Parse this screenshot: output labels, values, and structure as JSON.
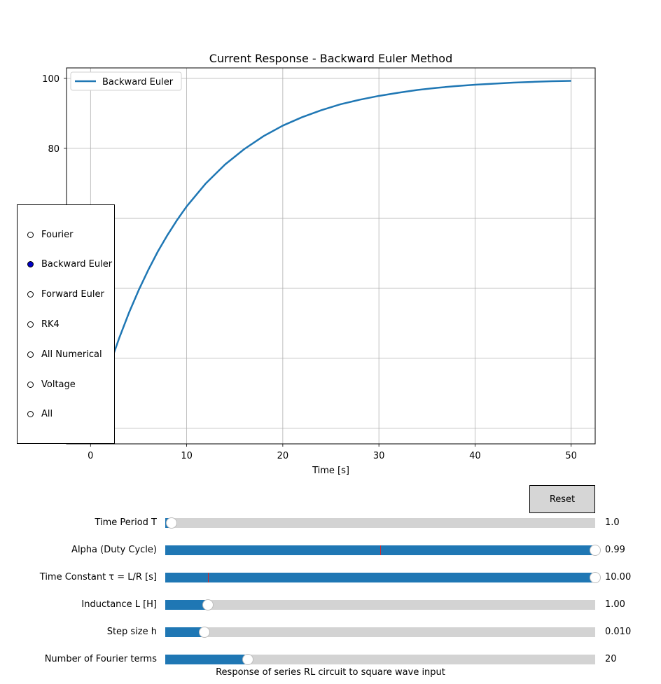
{
  "chart_data": {
    "type": "line",
    "title": "Current Response - Backward Euler Method",
    "xlabel": "Time [s]",
    "ylabel": "",
    "xlim": [
      -2.5,
      52.5
    ],
    "ylim": [
      -4.5,
      103
    ],
    "xticks": [
      0,
      10,
      20,
      30,
      40,
      50
    ],
    "yticks": [
      0,
      20,
      40,
      60,
      80,
      100
    ],
    "ytick_labels_visible": [
      "80",
      "100"
    ],
    "grid": true,
    "legend": "upper left",
    "series": [
      {
        "name": "Backward Euler",
        "color": "#1f77b4",
        "x": [
          0,
          1,
          2,
          3,
          4,
          5,
          6,
          7,
          8,
          9,
          10,
          12,
          14,
          16,
          18,
          20,
          22,
          24,
          26,
          28,
          30,
          32,
          34,
          36,
          38,
          40,
          42,
          44,
          46,
          48,
          50
        ],
        "y": [
          0,
          9.5,
          18.1,
          25.9,
          33.0,
          39.4,
          45.2,
          50.5,
          55.2,
          59.5,
          63.4,
          70.0,
          75.4,
          79.8,
          83.5,
          86.5,
          88.9,
          90.9,
          92.6,
          93.9,
          95.0,
          95.9,
          96.7,
          97.3,
          97.8,
          98.2,
          98.5,
          98.8,
          99.0,
          99.2,
          99.3
        ]
      }
    ]
  },
  "radio": {
    "options": [
      "Fourier",
      "Backward Euler",
      "Forward Euler",
      "RK4",
      "All Numerical",
      "Voltage",
      "All"
    ],
    "selected": "Backward Euler",
    "active_color": "#0000c8"
  },
  "reset_label": "Reset",
  "sliders": [
    {
      "label": "Time Period T",
      "value_text": "1.0",
      "level": 0.015,
      "init_level": 0.015
    },
    {
      "label": "Alpha (Duty Cycle)",
      "value_text": "0.99",
      "level": 1.0,
      "init_level": 0.5
    },
    {
      "label": "Time Constant τ = L/R [s]",
      "value_text": "10.00",
      "level": 1.0,
      "init_level": 0.1
    },
    {
      "label": "Inductance L [H]",
      "value_text": "1.00",
      "level": 0.1,
      "init_level": 0.1
    },
    {
      "label": "Step size h",
      "value_text": "0.010",
      "level": 0.092,
      "init_level": 0.092
    },
    {
      "label": "Number of Fourier terms",
      "value_text": "20",
      "level": 0.192,
      "init_level": 0.192
    }
  ],
  "footer": "Response of series RL circuit to square wave input",
  "colors": {
    "series": "#1f77b4",
    "slider_fill": "#1f77b4",
    "slider_track": "#d3d3d3",
    "slider_init_marker": "#d62728",
    "grid": "#b0b0b0",
    "button_bg": "#d6d6d6"
  }
}
